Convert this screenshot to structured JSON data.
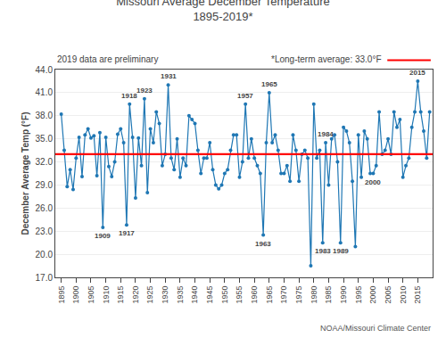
{
  "chart_data": {
    "type": "line",
    "title": "Missouri Average December Temperature",
    "subtitle": "1895-2019*",
    "ylabel": "December Average Temp (°F)",
    "note": "2019 data are preliminary",
    "source": "NOAA/Missouri Climate Center",
    "x": [
      1895,
      1896,
      1897,
      1898,
      1899,
      1900,
      1901,
      1902,
      1903,
      1904,
      1905,
      1906,
      1907,
      1908,
      1909,
      1910,
      1911,
      1912,
      1913,
      1914,
      1915,
      1916,
      1917,
      1918,
      1919,
      1920,
      1921,
      1922,
      1923,
      1924,
      1925,
      1926,
      1927,
      1928,
      1929,
      1930,
      1931,
      1932,
      1933,
      1934,
      1935,
      1936,
      1937,
      1938,
      1939,
      1940,
      1941,
      1942,
      1943,
      1944,
      1945,
      1946,
      1947,
      1948,
      1949,
      1950,
      1951,
      1952,
      1953,
      1954,
      1955,
      1956,
      1957,
      1958,
      1959,
      1960,
      1961,
      1962,
      1963,
      1964,
      1965,
      1966,
      1967,
      1968,
      1969,
      1970,
      1971,
      1972,
      1973,
      1974,
      1975,
      1976,
      1977,
      1978,
      1979,
      1980,
      1981,
      1982,
      1983,
      1984,
      1985,
      1986,
      1987,
      1988,
      1989,
      1990,
      1991,
      1992,
      1993,
      1994,
      1995,
      1996,
      1997,
      1998,
      1999,
      2000,
      2001,
      2002,
      2003,
      2004,
      2005,
      2006,
      2007,
      2008,
      2009,
      2010,
      2011,
      2012,
      2013,
      2014,
      2015,
      2016,
      2017,
      2018,
      2019
    ],
    "values": [
      38.2,
      33.5,
      28.8,
      31.0,
      28.4,
      32.5,
      35.2,
      30.1,
      35.5,
      36.3,
      35.1,
      35.4,
      30.2,
      35.8,
      23.5,
      35.2,
      31.4,
      30.1,
      32.0,
      35.6,
      36.3,
      34.5,
      23.8,
      39.5,
      35.2,
      27.3,
      35.1,
      31.5,
      40.2,
      28.0,
      36.3,
      34.5,
      38.5,
      37.0,
      31.5,
      33.0,
      42.0,
      32.5,
      31.0,
      35.0,
      30.0,
      32.5,
      31.5,
      38.0,
      37.5,
      37.0,
      33.5,
      30.5,
      32.5,
      32.5,
      34.5,
      31.0,
      29.0,
      28.5,
      29.0,
      30.5,
      31.0,
      33.5,
      35.5,
      35.5,
      30.0,
      32.0,
      39.5,
      32.5,
      35.0,
      32.5,
      31.5,
      30.5,
      22.5,
      34.5,
      41.0,
      34.5,
      35.5,
      33.5,
      30.5,
      30.5,
      31.5,
      29.5,
      35.5,
      33.5,
      29.5,
      33.0,
      33.5,
      32.5,
      18.5,
      39.5,
      32.5,
      33.5,
      21.5,
      34.5,
      29.0,
      35.0,
      35.5,
      32.0,
      21.5,
      36.5,
      36.0,
      34.5,
      29.5,
      21.0,
      35.5,
      30.0,
      36.0,
      35.0,
      30.5,
      30.5,
      31.5,
      38.5,
      33.0,
      33.5,
      35.0,
      33.0,
      38.5,
      36.5,
      37.5,
      30.0,
      31.5,
      32.5,
      36.5,
      38.5,
      42.5,
      38.5,
      36.0,
      32.5,
      38.5
    ],
    "hlines": [
      {
        "value": 33.0,
        "label": "*Long-term average: 33.0°F",
        "color": "#ff0000"
      }
    ],
    "annotations": [
      {
        "x": 1909,
        "text": "1909"
      },
      {
        "x": 1917,
        "text": "1917"
      },
      {
        "x": 1918,
        "text": "1918"
      },
      {
        "x": 1923,
        "text": "1923"
      },
      {
        "x": 1931,
        "text": "1931"
      },
      {
        "x": 1957,
        "text": "1957"
      },
      {
        "x": 1963,
        "text": "1963"
      },
      {
        "x": 1965,
        "text": "1965"
      },
      {
        "x": 1983,
        "text": "1983"
      },
      {
        "x": 1984,
        "text": "1984"
      },
      {
        "x": 1989,
        "text": "1989"
      },
      {
        "x": 2000,
        "text": "2000"
      },
      {
        "x": 2015,
        "text": "2015"
      }
    ],
    "xlim": [
      1893,
      2020
    ],
    "xticks": [
      1895,
      1900,
      1905,
      1910,
      1915,
      1920,
      1925,
      1930,
      1935,
      1940,
      1945,
      1950,
      1955,
      1960,
      1965,
      1970,
      1975,
      1980,
      1985,
      1990,
      1995,
      2000,
      2005,
      2010,
      2015
    ],
    "ylim": [
      17.0,
      44.0
    ],
    "yticks": [
      {
        "value": 17.0,
        "label": "17.0"
      },
      {
        "value": 20.0,
        "label": "20.0"
      },
      {
        "value": 23.0,
        "label": "23.0"
      },
      {
        "value": 26.0,
        "label": "26.0"
      },
      {
        "value": 29.0,
        "label": "29.0"
      },
      {
        "value": 32.0,
        "label": "32.0"
      },
      {
        "value": 35.0,
        "label": "35.0"
      },
      {
        "value": 38.0,
        "label": "38.0"
      },
      {
        "value": 41.0,
        "label": "41.0"
      },
      {
        "value": 44.0,
        "label": "44.0"
      }
    ],
    "grid": "y"
  }
}
